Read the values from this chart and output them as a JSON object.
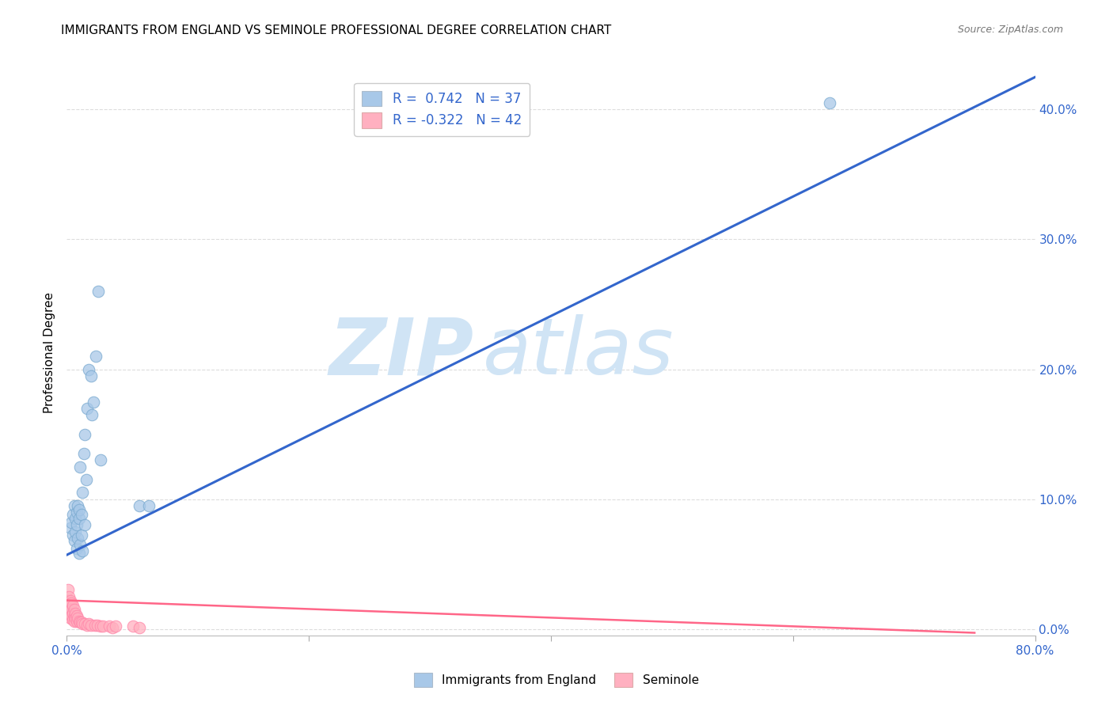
{
  "title": "IMMIGRANTS FROM ENGLAND VS SEMINOLE PROFESSIONAL DEGREE CORRELATION CHART",
  "source": "Source: ZipAtlas.com",
  "ylabel": "Professional Degree",
  "xlim": [
    0.0,
    0.8
  ],
  "ylim": [
    -0.005,
    0.43
  ],
  "ytick_vals": [
    0.0,
    0.1,
    0.2,
    0.3,
    0.4
  ],
  "xtick_vals": [
    0.0,
    0.2,
    0.4,
    0.6,
    0.8
  ],
  "xtick_labels": [
    "0.0%",
    "",
    "",
    "",
    "80.0%"
  ],
  "blue_color": "#A8C8E8",
  "pink_color": "#FFB0C0",
  "blue_edge_color": "#7AAAD0",
  "pink_edge_color": "#FF88AA",
  "blue_line_color": "#3366CC",
  "pink_line_color": "#FF6688",
  "blue_scatter_x": [
    0.003,
    0.004,
    0.005,
    0.005,
    0.006,
    0.006,
    0.007,
    0.007,
    0.008,
    0.008,
    0.008,
    0.009,
    0.009,
    0.01,
    0.01,
    0.01,
    0.011,
    0.011,
    0.012,
    0.012,
    0.013,
    0.013,
    0.014,
    0.015,
    0.015,
    0.016,
    0.017,
    0.018,
    0.02,
    0.021,
    0.022,
    0.024,
    0.026,
    0.028,
    0.06,
    0.068,
    0.63
  ],
  "blue_scatter_y": [
    0.078,
    0.082,
    0.072,
    0.088,
    0.068,
    0.095,
    0.075,
    0.085,
    0.062,
    0.08,
    0.09,
    0.07,
    0.095,
    0.058,
    0.085,
    0.092,
    0.065,
    0.125,
    0.072,
    0.088,
    0.105,
    0.06,
    0.135,
    0.08,
    0.15,
    0.115,
    0.17,
    0.2,
    0.195,
    0.165,
    0.175,
    0.21,
    0.26,
    0.13,
    0.095,
    0.095,
    0.405
  ],
  "pink_scatter_x": [
    0.001,
    0.001,
    0.001,
    0.002,
    0.002,
    0.002,
    0.002,
    0.003,
    0.003,
    0.003,
    0.003,
    0.004,
    0.004,
    0.004,
    0.005,
    0.005,
    0.005,
    0.006,
    0.006,
    0.006,
    0.007,
    0.007,
    0.008,
    0.008,
    0.009,
    0.01,
    0.011,
    0.012,
    0.013,
    0.015,
    0.017,
    0.018,
    0.02,
    0.023,
    0.025,
    0.028,
    0.03,
    0.035,
    0.038,
    0.04,
    0.055,
    0.06
  ],
  "pink_scatter_y": [
    0.03,
    0.022,
    0.018,
    0.025,
    0.02,
    0.015,
    0.012,
    0.022,
    0.018,
    0.012,
    0.008,
    0.02,
    0.015,
    0.01,
    0.018,
    0.012,
    0.007,
    0.015,
    0.01,
    0.006,
    0.012,
    0.008,
    0.01,
    0.006,
    0.008,
    0.006,
    0.005,
    0.005,
    0.004,
    0.004,
    0.003,
    0.004,
    0.003,
    0.003,
    0.003,
    0.002,
    0.002,
    0.002,
    0.001,
    0.002,
    0.002,
    0.001
  ],
  "blue_line_x": [
    0.0,
    0.8
  ],
  "blue_line_y": [
    0.057,
    0.425
  ],
  "pink_line_x": [
    0.0,
    0.75
  ],
  "pink_line_y": [
    0.022,
    -0.003
  ],
  "watermark_zip": "ZIP",
  "watermark_atlas": "atlas",
  "legend_items": [
    "Immigrants from England",
    "Seminole"
  ],
  "legend_r1": "R =  0.742   N = 37",
  "legend_r2": "R = -0.322   N = 42",
  "title_fontsize": 11,
  "axis_label_color": "#3366CC",
  "tick_color": "#3366CC",
  "grid_color": "#DDDDDD",
  "background_color": "#FFFFFF"
}
